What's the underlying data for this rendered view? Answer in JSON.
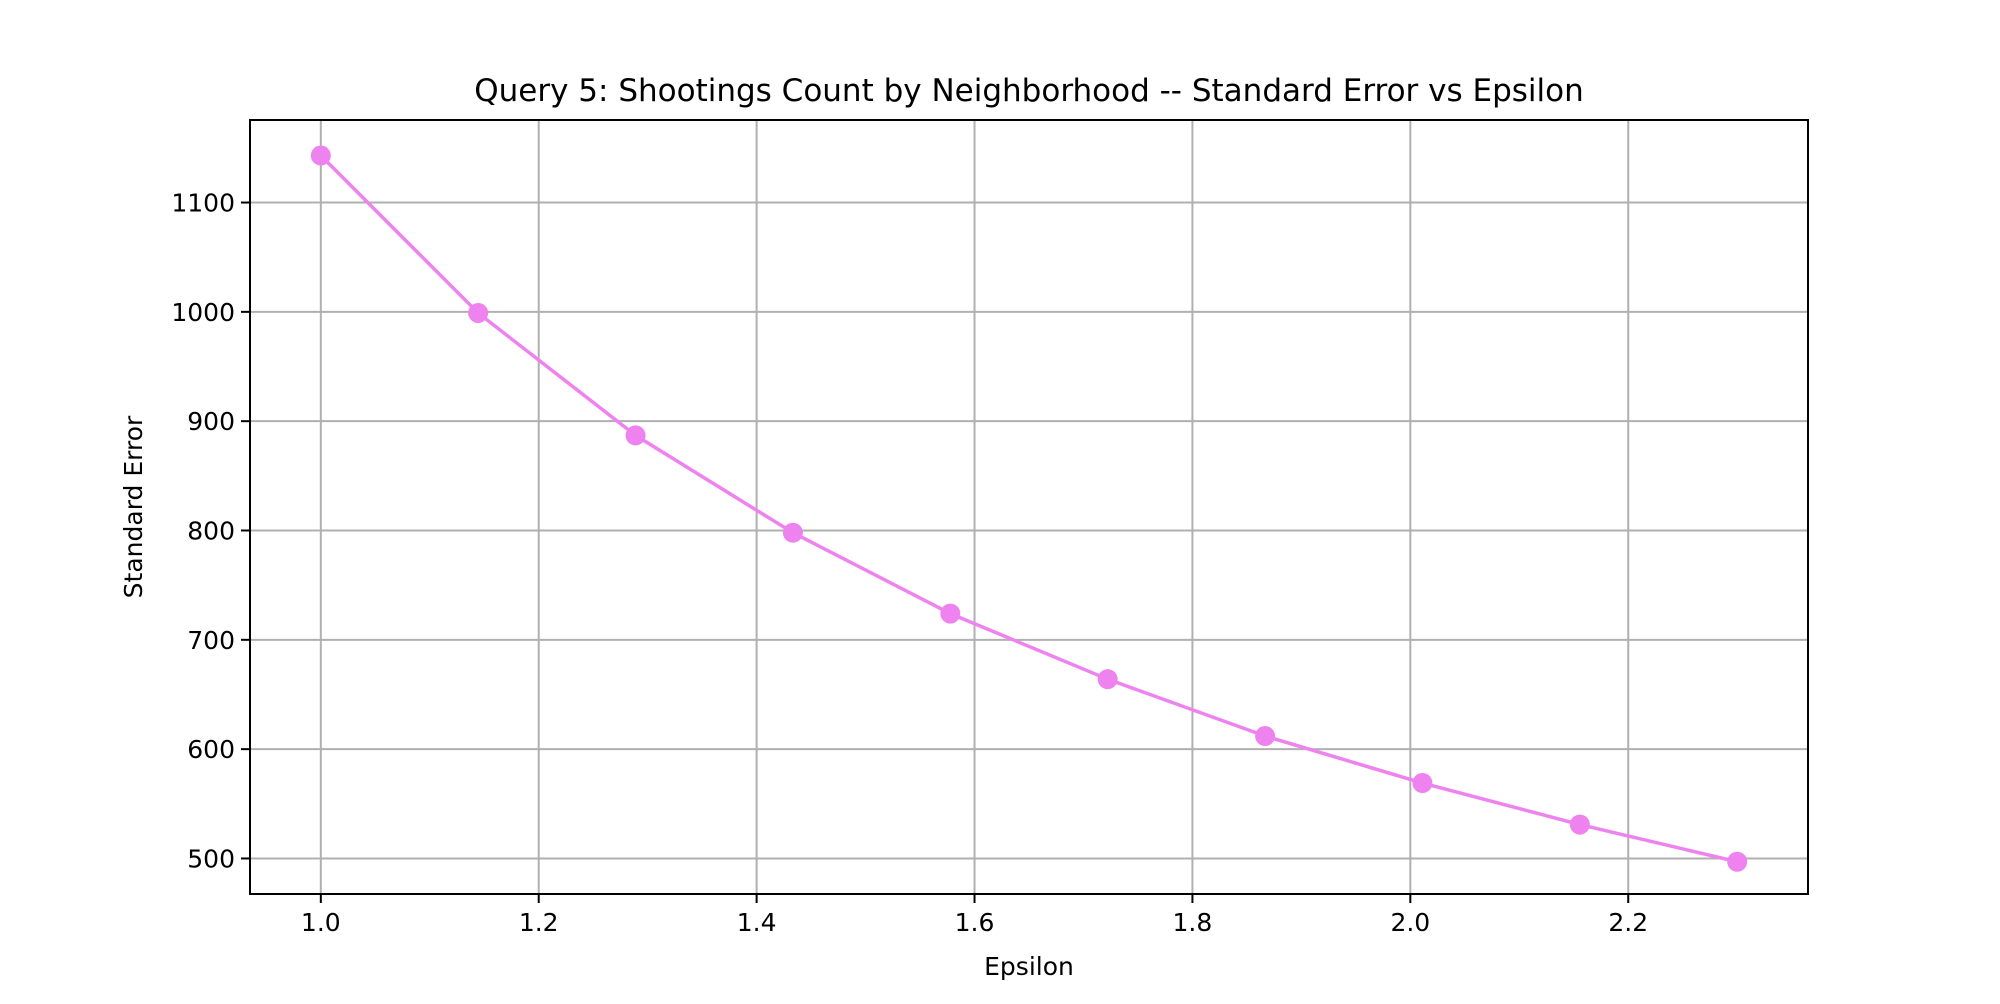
{
  "chart_data": {
    "type": "line",
    "title": "Query 5: Shootings Count by Neighborhood -- Standard Error vs Epsilon",
    "xlabel": "Epsilon",
    "ylabel": "Standard Error",
    "x": [
      1.0,
      1.1444,
      1.2889,
      1.4333,
      1.5778,
      1.7222,
      1.8667,
      2.0111,
      2.1556,
      2.3
    ],
    "series": [
      {
        "color": "#ee82ee",
        "marker": "circle",
        "values": [
          1143,
          999,
          887,
          798,
          724,
          664,
          612,
          569,
          531,
          497
        ]
      }
    ],
    "xlim": [
      0.935,
      2.365
    ],
    "ylim": [
      467.5,
      1175.5
    ],
    "xticks": [
      1.0,
      1.2,
      1.4,
      1.6,
      1.8,
      2.0,
      2.2
    ],
    "xtick_labels": [
      "1.0",
      "1.2",
      "1.4",
      "1.6",
      "1.8",
      "2.0",
      "2.2"
    ],
    "yticks": [
      500,
      600,
      700,
      800,
      900,
      1000,
      1100
    ],
    "ytick_labels": [
      "500",
      "600",
      "700",
      "800",
      "900",
      "1000",
      "1100"
    ],
    "grid": true,
    "legend": "none"
  }
}
